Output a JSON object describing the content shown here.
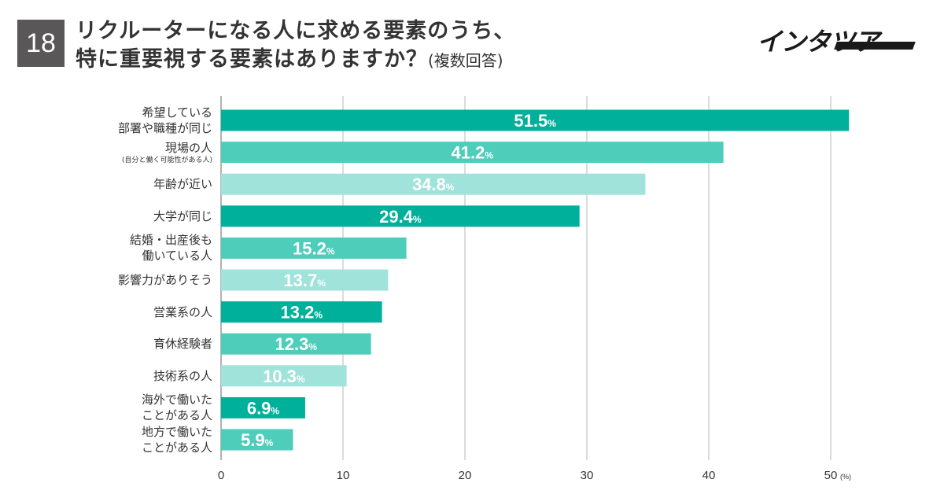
{
  "header": {
    "number": "18",
    "title_line1": "リクルーターになる人に求める要素のうち、",
    "title_line2": "特に重要視する要素はありますか？",
    "title_suffix": "(複数回答)",
    "logo_text": "インタツア"
  },
  "chart_data": {
    "type": "bar",
    "orientation": "horizontal",
    "categories": [
      "希望している部署や職種が同じ",
      "現場の人(自分と働く可能性がある人)",
      "年齢が近い",
      "大学が同じ",
      "結婚・出産後も働いている人",
      "影響力がありそう",
      "営業系の人",
      "育休経験者",
      "技術系の人",
      "海外で働いたことがある人",
      "地方で働いたことがある人"
    ],
    "values": [
      51.5,
      41.2,
      34.8,
      29.4,
      15.2,
      13.7,
      13.2,
      12.3,
      10.3,
      6.9,
      5.9
    ],
    "value_labels": [
      "51.5",
      "41.2",
      "34.8",
      "29.4",
      "15.2",
      "13.7",
      "13.2",
      "12.3",
      "10.3",
      "6.9",
      "5.9"
    ],
    "value_suffix": "%",
    "xlim": [
      0,
      50
    ],
    "xticks": [
      "0",
      "10",
      "20",
      "30",
      "40",
      "50"
    ],
    "xunit": "(%)",
    "grid": true,
    "colors": [
      "#00b09b",
      "#4ecdbb",
      "#9fe3da"
    ]
  },
  "labels": [
    {
      "line1": "希望している",
      "line2": "部署や職種が同じ"
    },
    {
      "line1": "現場の人",
      "small": "(自分と働く可能性がある人)"
    },
    {
      "line1": "年齢が近い"
    },
    {
      "line1": "大学が同じ"
    },
    {
      "line1": "結婚・出産後も",
      "line2": "働いている人"
    },
    {
      "line1": "影響力がありそう"
    },
    {
      "line1": "営業系の人"
    },
    {
      "line1": "育休経験者"
    },
    {
      "line1": "技術系の人"
    },
    {
      "line1": "海外で働いた",
      "line2": "ことがある人"
    },
    {
      "line1": "地方で働いた",
      "line2": "ことがある人"
    }
  ]
}
